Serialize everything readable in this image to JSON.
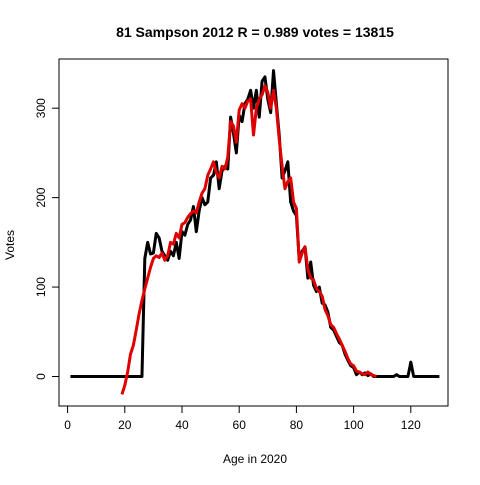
{
  "chart_data": {
    "type": "line",
    "title": "81 Sampson 2012 R = 0.989 votes = 13815",
    "xlabel": "Age in 2020",
    "ylabel": "Votes",
    "xlim": [
      -3,
      133
    ],
    "ylim": [
      -33,
      355
    ],
    "x_ticks": [
      0,
      20,
      40,
      60,
      80,
      100,
      120
    ],
    "y_ticks": [
      0,
      100,
      200,
      300
    ],
    "grid": false,
    "colors": {
      "actual": "#000000",
      "model": "#e00000"
    },
    "series": [
      {
        "color": "#000000",
        "points": [
          [
            1,
            0
          ],
          [
            5,
            0
          ],
          [
            10,
            0
          ],
          [
            15,
            0
          ],
          [
            20,
            0
          ],
          [
            25,
            0
          ],
          [
            26,
            0
          ],
          [
            27,
            132
          ],
          [
            28,
            150
          ],
          [
            29,
            137
          ],
          [
            30,
            138
          ],
          [
            31,
            160
          ],
          [
            32,
            155
          ],
          [
            33,
            140
          ],
          [
            34,
            135
          ],
          [
            35,
            130
          ],
          [
            36,
            140
          ],
          [
            37,
            135
          ],
          [
            38,
            150
          ],
          [
            39,
            132
          ],
          [
            40,
            162
          ],
          [
            41,
            158
          ],
          [
            42,
            170
          ],
          [
            43,
            175
          ],
          [
            44,
            190
          ],
          [
            45,
            162
          ],
          [
            46,
            185
          ],
          [
            47,
            200
          ],
          [
            48,
            192
          ],
          [
            49,
            195
          ],
          [
            50,
            222
          ],
          [
            51,
            225
          ],
          [
            52,
            240
          ],
          [
            53,
            210
          ],
          [
            54,
            230
          ],
          [
            55,
            235
          ],
          [
            56,
            232
          ],
          [
            57,
            290
          ],
          [
            58,
            272
          ],
          [
            59,
            250
          ],
          [
            60,
            292
          ],
          [
            61,
            285
          ],
          [
            62,
            305
          ],
          [
            63,
            310
          ],
          [
            64,
            320
          ],
          [
            65,
            300
          ],
          [
            66,
            320
          ],
          [
            67,
            290
          ],
          [
            68,
            330
          ],
          [
            69,
            335
          ],
          [
            70,
            310
          ],
          [
            71,
            295
          ],
          [
            72,
            342
          ],
          [
            73,
            305
          ],
          [
            74,
            270
          ],
          [
            75,
            222
          ],
          [
            76,
            230
          ],
          [
            77,
            240
          ],
          [
            78,
            195
          ],
          [
            79,
            185
          ],
          [
            80,
            180
          ],
          [
            81,
            130
          ],
          [
            82,
            140
          ],
          [
            83,
            145
          ],
          [
            84,
            110
          ],
          [
            85,
            128
          ],
          [
            86,
            102
          ],
          [
            87,
            95
          ],
          [
            88,
            100
          ],
          [
            89,
            82
          ],
          [
            90,
            80
          ],
          [
            91,
            72
          ],
          [
            92,
            55
          ],
          [
            93,
            52
          ],
          [
            94,
            45
          ],
          [
            95,
            38
          ],
          [
            96,
            35
          ],
          [
            97,
            25
          ],
          [
            98,
            18
          ],
          [
            99,
            12
          ],
          [
            100,
            10
          ],
          [
            101,
            2
          ],
          [
            102,
            5
          ],
          [
            103,
            2
          ],
          [
            104,
            4
          ],
          [
            105,
            1
          ],
          [
            106,
            3
          ],
          [
            107,
            0
          ],
          [
            110,
            0
          ],
          [
            114,
            0
          ],
          [
            115,
            2
          ],
          [
            116,
            0
          ],
          [
            119,
            0
          ],
          [
            120,
            16
          ],
          [
            121,
            0
          ],
          [
            125,
            0
          ],
          [
            130,
            0
          ]
        ]
      },
      {
        "color": "#e00000",
        "points": [
          [
            19,
            -20
          ],
          [
            20,
            -10
          ],
          [
            21,
            5
          ],
          [
            22,
            25
          ],
          [
            23,
            35
          ],
          [
            24,
            52
          ],
          [
            25,
            70
          ],
          [
            26,
            85
          ],
          [
            27,
            98
          ],
          [
            28,
            110
          ],
          [
            29,
            122
          ],
          [
            30,
            132
          ],
          [
            31,
            135
          ],
          [
            32,
            133
          ],
          [
            33,
            138
          ],
          [
            34,
            130
          ],
          [
            35,
            135
          ],
          [
            36,
            150
          ],
          [
            37,
            148
          ],
          [
            38,
            160
          ],
          [
            39,
            155
          ],
          [
            40,
            170
          ],
          [
            41,
            172
          ],
          [
            42,
            178
          ],
          [
            43,
            182
          ],
          [
            44,
            185
          ],
          [
            45,
            183
          ],
          [
            46,
            195
          ],
          [
            47,
            205
          ],
          [
            48,
            210
          ],
          [
            49,
            225
          ],
          [
            50,
            232
          ],
          [
            51,
            240
          ],
          [
            52,
            228
          ],
          [
            53,
            222
          ],
          [
            54,
            235
          ],
          [
            55,
            232
          ],
          [
            56,
            245
          ],
          [
            57,
            285
          ],
          [
            58,
            280
          ],
          [
            59,
            262
          ],
          [
            60,
            298
          ],
          [
            61,
            305
          ],
          [
            62,
            300
          ],
          [
            63,
            308
          ],
          [
            64,
            310
          ],
          [
            65,
            270
          ],
          [
            66,
            300
          ],
          [
            67,
            310
          ],
          [
            68,
            315
          ],
          [
            69,
            325
          ],
          [
            70,
            318
          ],
          [
            71,
            300
          ],
          [
            72,
            320
          ],
          [
            73,
            300
          ],
          [
            74,
            265
          ],
          [
            75,
            235
          ],
          [
            76,
            210
          ],
          [
            77,
            218
          ],
          [
            78,
            222
          ],
          [
            79,
            195
          ],
          [
            80,
            188
          ],
          [
            81,
            128
          ],
          [
            82,
            138
          ],
          [
            83,
            145
          ],
          [
            84,
            120
          ],
          [
            85,
            110
          ],
          [
            86,
            108
          ],
          [
            87,
            98
          ],
          [
            88,
            95
          ],
          [
            89,
            90
          ],
          [
            90,
            75
          ],
          [
            91,
            68
          ],
          [
            92,
            58
          ],
          [
            93,
            55
          ],
          [
            94,
            48
          ],
          [
            95,
            42
          ],
          [
            96,
            35
          ],
          [
            97,
            28
          ],
          [
            98,
            20
          ],
          [
            99,
            14
          ],
          [
            100,
            12
          ],
          [
            101,
            6
          ],
          [
            102,
            5
          ],
          [
            103,
            3
          ],
          [
            104,
            2
          ],
          [
            105,
            5
          ],
          [
            106,
            2
          ],
          [
            107,
            1
          ],
          [
            108,
            0
          ]
        ]
      }
    ]
  }
}
